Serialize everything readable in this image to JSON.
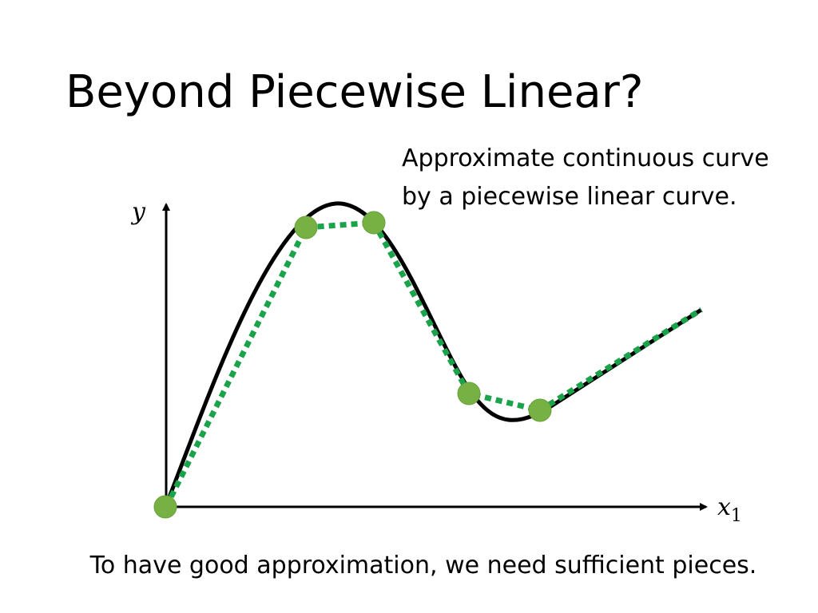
{
  "header": {
    "title": "Beyond Piecewise Linear?"
  },
  "note": {
    "lines": [
      "Approximate continuous curve",
      "by a piecewise linear curve."
    ]
  },
  "axes": {
    "y": "y",
    "x": "x",
    "x_subscript": "1"
  },
  "caption": "To have good approximation, we need sufficient pieces."
}
